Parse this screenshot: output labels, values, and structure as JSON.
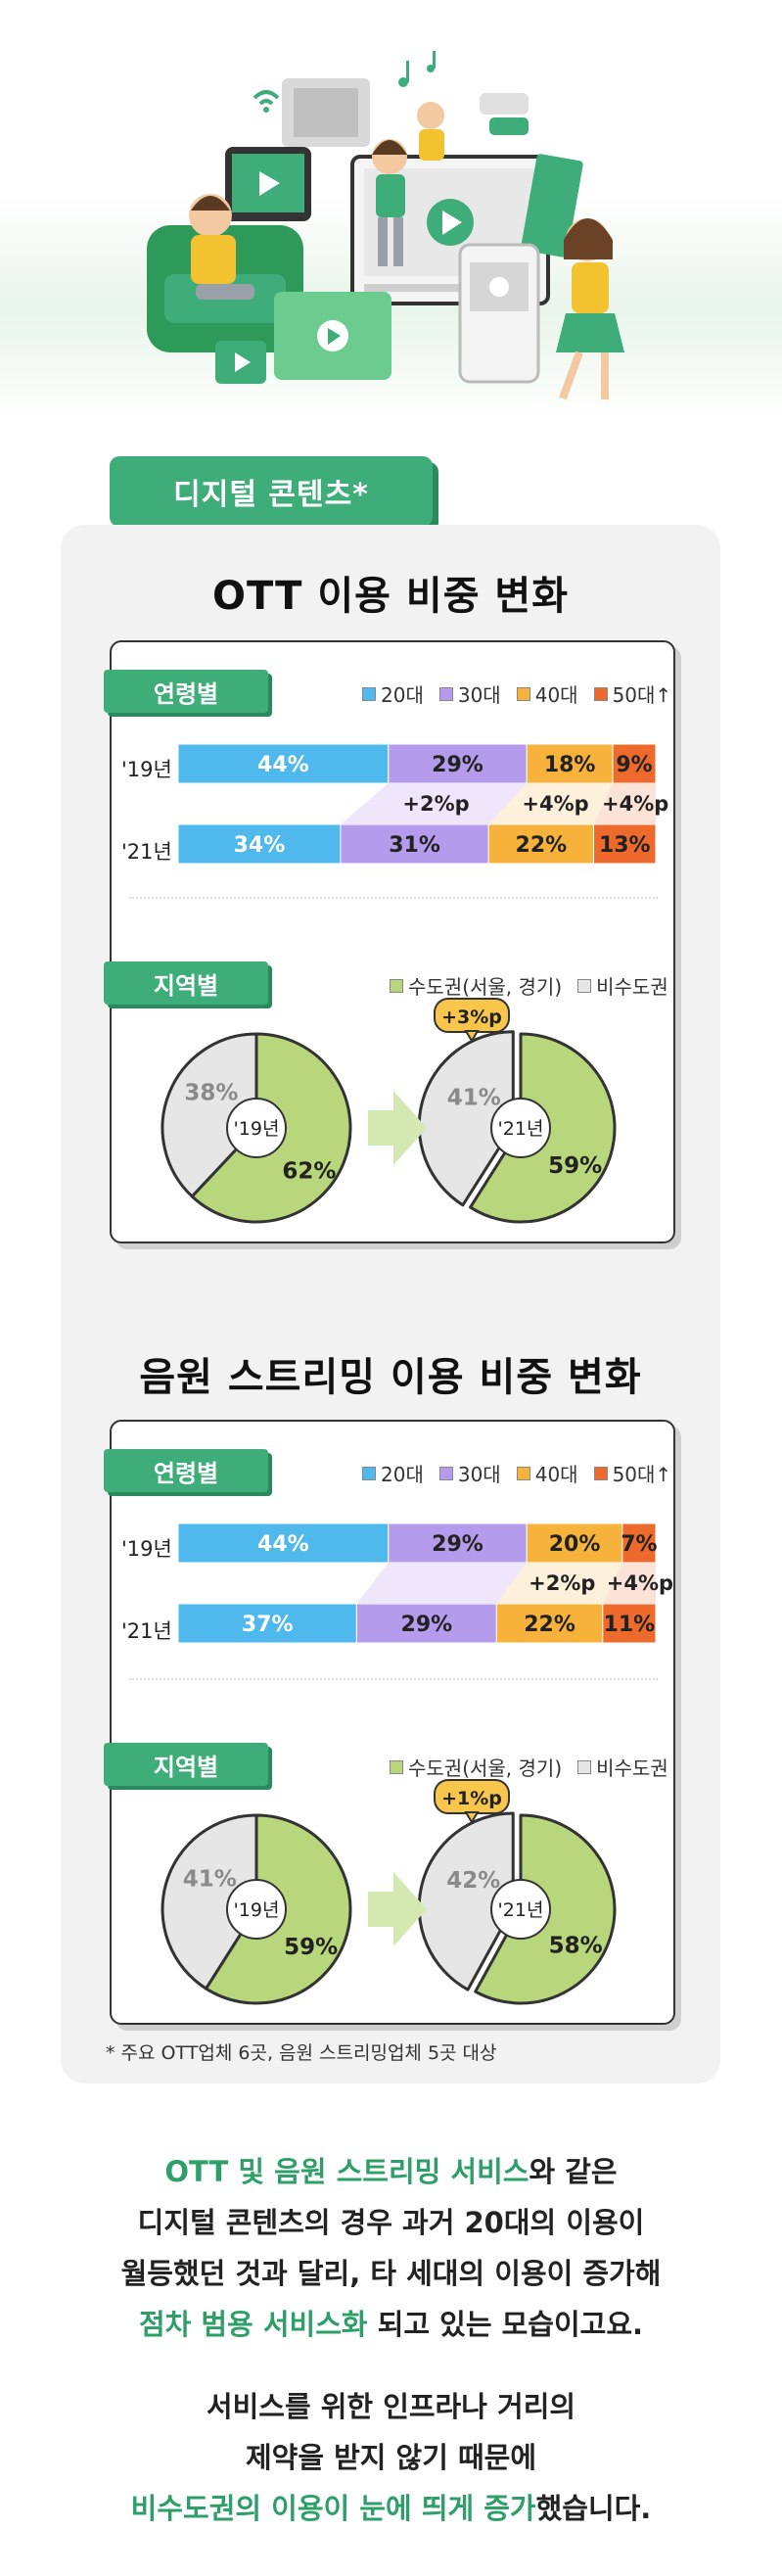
{
  "category_tab": "디지털 콘텐츠*",
  "sections": [
    {
      "title": "OTT 이용 비중 변화",
      "age_label": "연령별",
      "region_label": "지역별"
    },
    {
      "title": "음원 스트리밍 이용 비중 변화",
      "age_label": "연령별",
      "region_label": "지역별"
    }
  ],
  "legend_age": [
    "20대",
    "30대",
    "40대",
    "50대↑"
  ],
  "legend_region": [
    "수도권(서울, 경기)",
    "비수도권"
  ],
  "colors": {
    "age20": "#4fb8ec",
    "age30": "#b49bec",
    "age40": "#f7b23b",
    "age50": "#ee6a2c",
    "capital": "#b8d77c",
    "noncapital": "#e6e6e6",
    "accent": "#3ead7a"
  },
  "chart_data": [
    {
      "type": "bar",
      "stacked": true,
      "orientation": "horizontal",
      "categories": [
        "'19년",
        "'21년"
      ],
      "series": [
        {
          "name": "20대",
          "values": [
            44,
            34
          ]
        },
        {
          "name": "30대",
          "values": [
            29,
            31
          ]
        },
        {
          "name": "40대",
          "values": [
            18,
            22
          ]
        },
        {
          "name": "50대↑",
          "values": [
            9,
            13
          ]
        }
      ],
      "value_labels": [
        [
          "44%",
          "29%",
          "18%",
          "9%"
        ],
        [
          "34%",
          "31%",
          "22%",
          "13%"
        ]
      ],
      "annotations": [
        "+2%p",
        "+4%p",
        "+4%p"
      ],
      "title": "OTT 이용 비중 변화"
    },
    {
      "type": "pie",
      "categories": [
        "수도권(서울, 경기)",
        "비수도권"
      ],
      "charts": [
        {
          "label": "'19년",
          "values": [
            62,
            38
          ],
          "value_labels": [
            "62%",
            "38%"
          ]
        },
        {
          "label": "'21년",
          "values": [
            59,
            41
          ],
          "value_labels": [
            "59%",
            "41%"
          ],
          "annotation": "+3%p"
        }
      ]
    },
    {
      "type": "bar",
      "stacked": true,
      "orientation": "horizontal",
      "categories": [
        "'19년",
        "'21년"
      ],
      "series": [
        {
          "name": "20대",
          "values": [
            44,
            37
          ]
        },
        {
          "name": "30대",
          "values": [
            29,
            29
          ]
        },
        {
          "name": "40대",
          "values": [
            20,
            22
          ]
        },
        {
          "name": "50대↑",
          "values": [
            7,
            11
          ]
        }
      ],
      "value_labels": [
        [
          "44%",
          "29%",
          "20%",
          "7%"
        ],
        [
          "37%",
          "29%",
          "22%",
          "11%"
        ]
      ],
      "annotations": [
        "+2%p",
        "+4%p"
      ],
      "title": "음원 스트리밍 이용 비중 변화"
    },
    {
      "type": "pie",
      "categories": [
        "수도권(서울, 경기)",
        "비수도권"
      ],
      "charts": [
        {
          "label": "'19년",
          "values": [
            59,
            41
          ],
          "value_labels": [
            "59%",
            "41%"
          ]
        },
        {
          "label": "'21년",
          "values": [
            58,
            42
          ],
          "value_labels": [
            "58%",
            "42%"
          ],
          "annotation": "+1%p"
        }
      ]
    }
  ],
  "footnote": "* 주요 OTT업체 6곳, 음원 스트리밍업체 5곳 대상",
  "summary": {
    "p1": [
      [
        {
          "t": "OTT 및 음원 스트리밍 서비스",
          "hl": true
        },
        {
          "t": "와 같은",
          "hl": false
        }
      ],
      [
        {
          "t": "디지털 콘텐츠의 경우 과거 20대의 이용이",
          "hl": false
        }
      ],
      [
        {
          "t": "월등했던 것과 달리, 타 세대의 이용이 증가해",
          "hl": false
        }
      ],
      [
        {
          "t": "점차 범용 서비스화",
          "hl": true
        },
        {
          "t": " 되고 있는 모습이고요.",
          "hl": false
        }
      ]
    ],
    "p2": [
      [
        {
          "t": "서비스를 위한 인프라나 거리의",
          "hl": false
        }
      ],
      [
        {
          "t": "제약을 받지 않기 때문에",
          "hl": false
        }
      ],
      [
        {
          "t": "비수도권의 이용이 눈에 띄게 증가",
          "hl": true
        },
        {
          "t": "했습니다.",
          "hl": false
        }
      ]
    ]
  }
}
